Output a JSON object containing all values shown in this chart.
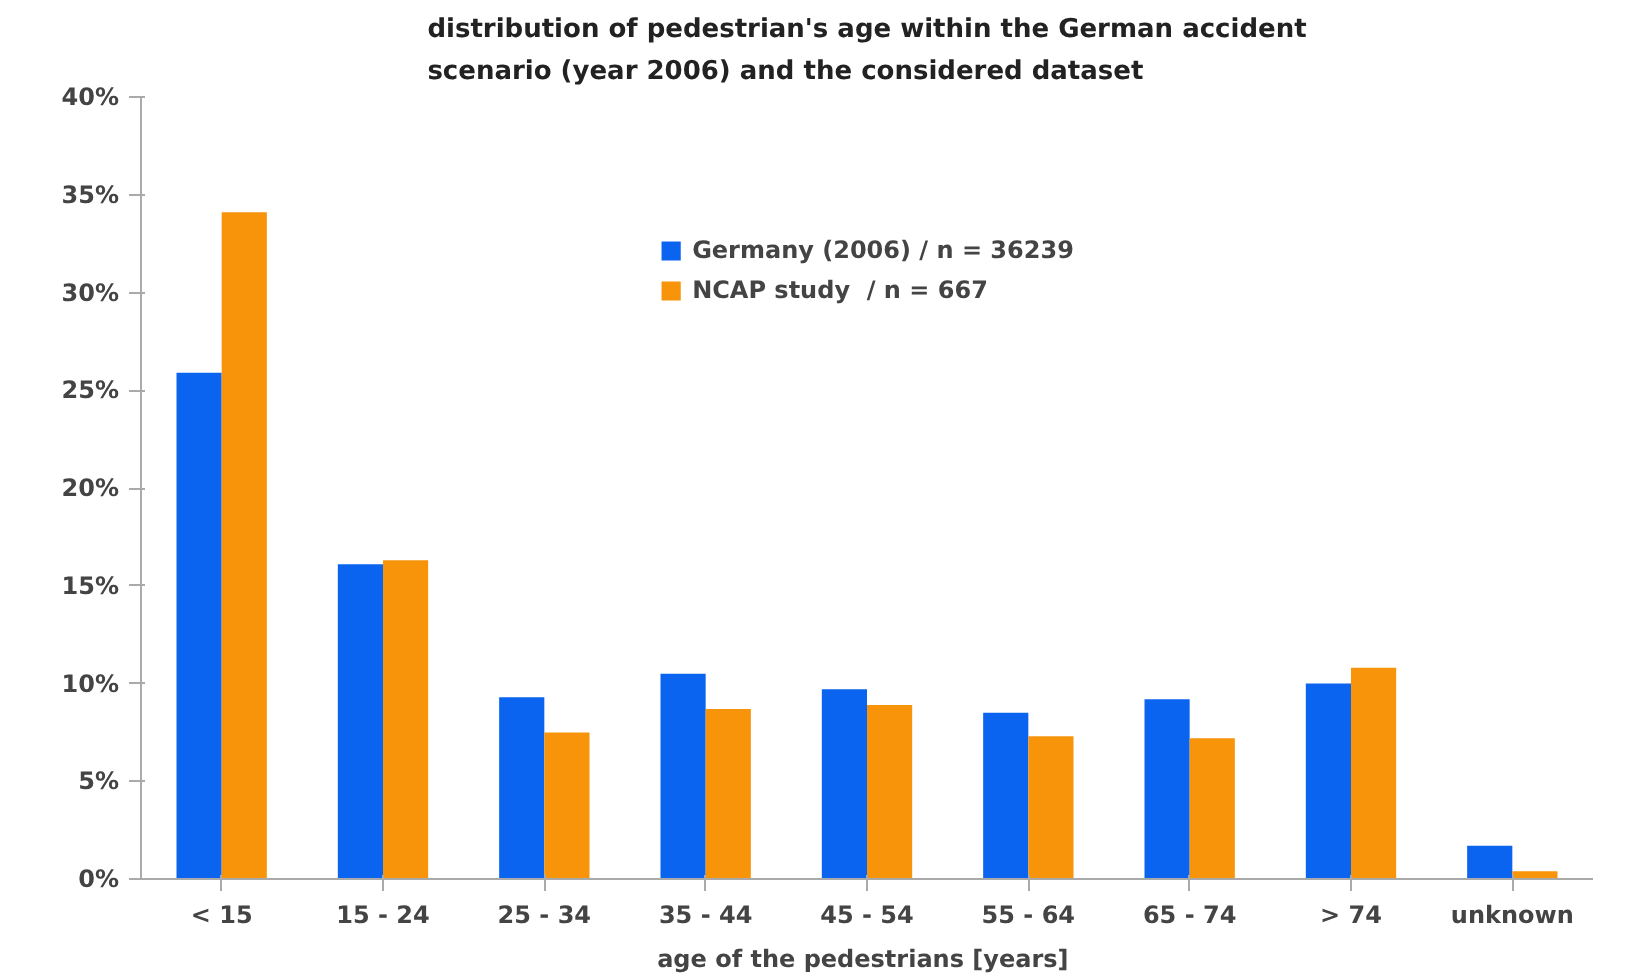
{
  "chart_data": {
    "type": "bar",
    "title": "distribution of pedestrian's age within the German accident\nscenario (year 2006) and the considered dataset",
    "xlabel": "age of the pedestrians  [years]",
    "categories": [
      "< 15",
      "15 - 24",
      "25 - 34",
      "35 - 44",
      "45 - 54",
      "55 - 64",
      "65 - 74",
      "> 74",
      "unknown"
    ],
    "series": [
      {
        "name": "Germany (2006) / n = 36239",
        "color": "#0a64f0",
        "values": [
          25.9,
          16.1,
          9.3,
          10.5,
          9.7,
          8.5,
          9.2,
          10.0,
          1.7
        ]
      },
      {
        "name": "NCAP study  / n = 667",
        "color": "#f7940a",
        "values": [
          34.1,
          16.3,
          7.5,
          8.7,
          8.9,
          7.3,
          7.2,
          10.8,
          0.4
        ]
      }
    ],
    "ylim": [
      0,
      40
    ],
    "yticks": [
      {
        "value": 0,
        "label": "0%"
      },
      {
        "value": 5,
        "label": "5%"
      },
      {
        "value": 10,
        "label": "10%"
      },
      {
        "value": 15,
        "label": "15%"
      },
      {
        "value": 20,
        "label": "20%"
      },
      {
        "value": 25,
        "label": "25%"
      },
      {
        "value": 30,
        "label": "30%"
      },
      {
        "value": 35,
        "label": "35%"
      },
      {
        "value": 40,
        "label": "40%"
      }
    ],
    "grid": false,
    "legend": "top"
  }
}
